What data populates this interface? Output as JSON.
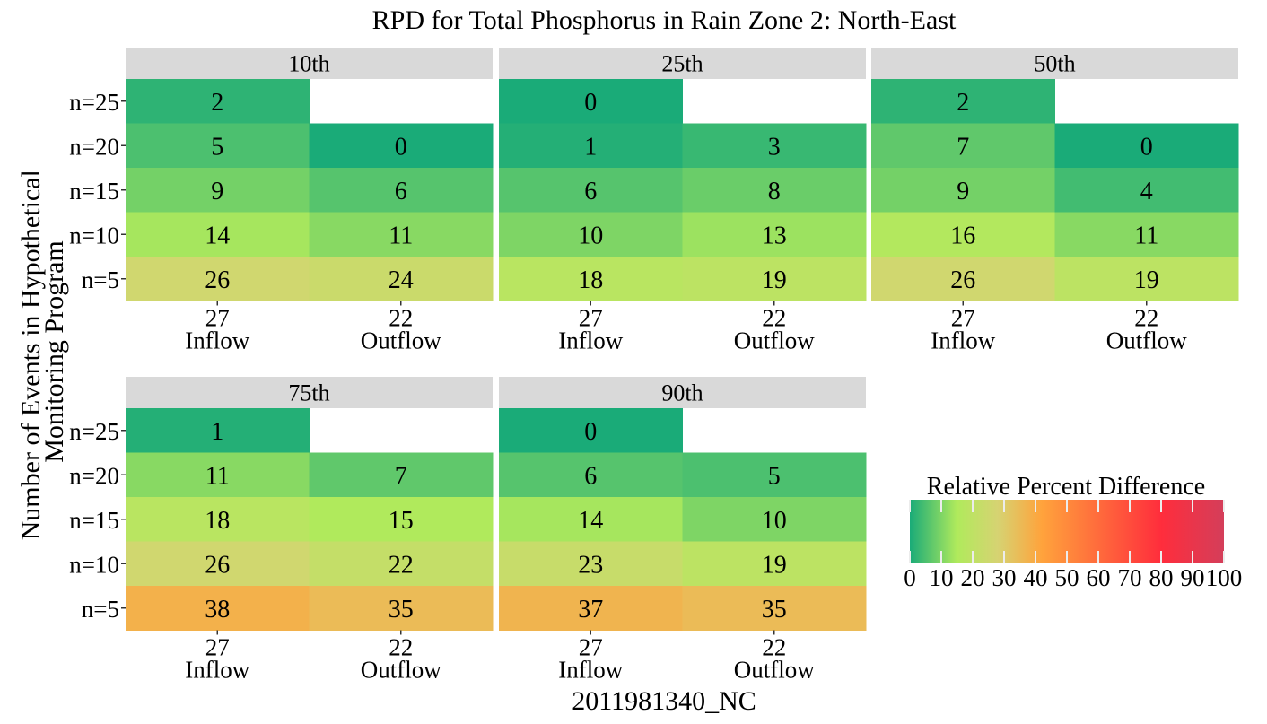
{
  "chart_data": {
    "type": "heatmap",
    "title": "RPD for Total Phosphorus in Rain Zone 2: North-East",
    "xlabel": "2011981340_NC",
    "ylabel": "Number of Events in Hypothetical Monitoring Program",
    "ylabel_lines": [
      "Number of Events in Hypothetical",
      "Monitoring Program"
    ],
    "rows": [
      "n=25",
      "n=20",
      "n=15",
      "n=10",
      "n=5"
    ],
    "columns": [
      {
        "count": "27",
        "label": "Inflow"
      },
      {
        "count": "22",
        "label": "Outflow"
      }
    ],
    "panels": [
      {
        "name": "10th",
        "values": [
          [
            2,
            null
          ],
          [
            5,
            0
          ],
          [
            9,
            6
          ],
          [
            14,
            11
          ],
          [
            26,
            24
          ]
        ]
      },
      {
        "name": "25th",
        "values": [
          [
            0,
            null
          ],
          [
            1,
            3
          ],
          [
            6,
            8
          ],
          [
            10,
            13
          ],
          [
            18,
            19
          ]
        ]
      },
      {
        "name": "50th",
        "values": [
          [
            2,
            null
          ],
          [
            7,
            0
          ],
          [
            9,
            4
          ],
          [
            16,
            11
          ],
          [
            26,
            19
          ]
        ]
      },
      {
        "name": "75th",
        "values": [
          [
            1,
            null
          ],
          [
            11,
            7
          ],
          [
            18,
            15
          ],
          [
            26,
            22
          ],
          [
            38,
            35
          ]
        ]
      },
      {
        "name": "90th",
        "values": [
          [
            0,
            null
          ],
          [
            6,
            5
          ],
          [
            14,
            10
          ],
          [
            23,
            19
          ],
          [
            37,
            35
          ]
        ]
      }
    ],
    "legend": {
      "title": "Relative Percent Difference",
      "range": [
        0,
        100
      ],
      "ticks": [
        0,
        10,
        20,
        30,
        40,
        50,
        60,
        70,
        80,
        90,
        100
      ],
      "palette": [
        "#1aab78",
        "#b0ea5c",
        "#d6d372",
        "#ffa33c",
        "#ff2d3c",
        "#d43e5a"
      ],
      "palette_stops": [
        0,
        15,
        28,
        42,
        80,
        100
      ]
    }
  }
}
